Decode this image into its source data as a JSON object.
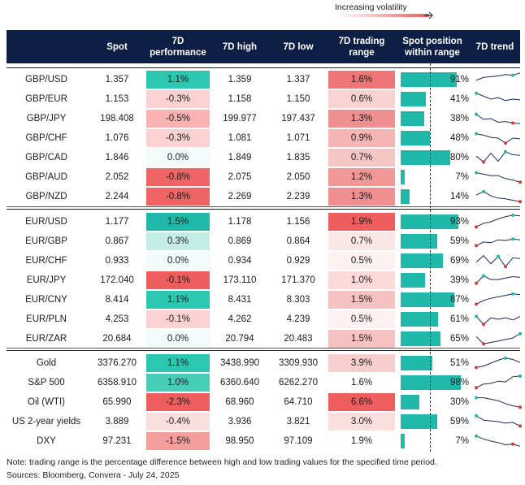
{
  "legend": {
    "label": "Increasing volatility"
  },
  "headers": {
    "spot": "Spot",
    "perf": "7D performance",
    "high": "7D high",
    "low": "7D low",
    "range": "7D trading range",
    "position": "Spot position within range",
    "trend": "7D trend"
  },
  "groups": [
    [
      {
        "name": "GBP/USD",
        "spot": "1.357",
        "perf": "1.1%",
        "perf_color": "#2cc7b0",
        "high": "1.359",
        "low": "1.337",
        "range": "1.6%",
        "range_color": "#ef7676",
        "pos": "91%",
        "pos_value": 91,
        "trend": [
          0.55,
          0.35,
          0.3,
          0.25,
          0.15,
          0.2,
          0.05
        ],
        "trend_hi": 5,
        "trend_lo": -1
      },
      {
        "name": "GBP/EUR",
        "spot": "1.153",
        "perf": "-0.3%",
        "perf_color": "#fbd1d1",
        "high": "1.158",
        "low": "1.150",
        "range": "0.6%",
        "range_color": "#f8d3d2",
        "pos": "41%",
        "pos_value": 41,
        "trend": [
          0.1,
          0.3,
          0.5,
          0.4,
          0.6,
          0.5,
          0.55
        ],
        "trend_hi": 0,
        "trend_lo": -1
      },
      {
        "name": "GBP/JPY",
        "spot": "198.408",
        "perf": "-0.5%",
        "perf_color": "#f9b1b1",
        "high": "199.977",
        "low": "197.437",
        "range": "1.3%",
        "range_color": "#f08f8f",
        "pos": "38%",
        "pos_value": 38,
        "trend": [
          0.2,
          0.55,
          0.5,
          0.75,
          0.7,
          0.8,
          0.85
        ],
        "trend_hi": 0,
        "trend_lo": 5
      },
      {
        "name": "GBP/CHF",
        "spot": "1.076",
        "perf": "-0.3%",
        "perf_color": "#fbd1d1",
        "high": "1.081",
        "low": "1.071",
        "range": "0.9%",
        "range_color": "#f4b5b4",
        "pos": "48%",
        "pos_value": 48,
        "trend": [
          0.2,
          0.3,
          0.45,
          0.5,
          0.85,
          0.5,
          0.55
        ],
        "trend_hi": 0,
        "trend_lo": 4
      },
      {
        "name": "GBP/CAD",
        "spot": "1.846",
        "perf": "0.0%",
        "perf_color": "#f3fbfa",
        "high": "1.849",
        "low": "1.835",
        "range": "0.7%",
        "range_color": "#f6c6c5",
        "pos": "80%",
        "pos_value": 80,
        "trend": [
          0.4,
          0.8,
          0.2,
          0.75,
          0.1,
          0.3,
          0.35
        ],
        "trend_hi": 4,
        "trend_lo": 1
      },
      {
        "name": "GBP/AUD",
        "spot": "2.052",
        "perf": "-0.8%",
        "perf_color": "#ef6465",
        "high": "2.075",
        "low": "2.050",
        "range": "1.2%",
        "range_color": "#f19897",
        "pos": "7%",
        "pos_value": 7,
        "trend": [
          0.2,
          0.3,
          0.4,
          0.4,
          0.6,
          0.7,
          0.85
        ],
        "trend_hi": 0,
        "trend_lo": 6
      },
      {
        "name": "GBP/NZD",
        "spot": "2.244",
        "perf": "-0.8%",
        "perf_color": "#ef6465",
        "high": "2.269",
        "low": "2.239",
        "range": "1.3%",
        "range_color": "#f08f8f",
        "pos": "14%",
        "pos_value": 14,
        "trend": [
          0.4,
          0.15,
          0.45,
          0.6,
          0.65,
          0.75,
          0.85
        ],
        "trend_hi": 1,
        "trend_lo": 6
      }
    ],
    [
      {
        "name": "EUR/USD",
        "spot": "1.177",
        "perf": "1.5%",
        "perf_color": "#1fb8a9",
        "high": "1.178",
        "low": "1.156",
        "range": "1.9%",
        "range_color": "#ee5e5e",
        "pos": "93%",
        "pos_value": 93,
        "trend": [
          0.85,
          0.6,
          0.5,
          0.3,
          0.15,
          0.05,
          0.1
        ],
        "trend_hi": 5,
        "trend_lo": 0
      },
      {
        "name": "EUR/GBP",
        "spot": "0.867",
        "perf": "0.3%",
        "perf_color": "#c3ede6",
        "high": "0.869",
        "low": "0.864",
        "range": "0.7%",
        "range_color": "#fbe6e6",
        "pos": "59%",
        "pos_value": 59,
        "trend": [
          0.8,
          0.55,
          0.6,
          0.4,
          0.45,
          0.35,
          0.4
        ],
        "trend_hi": 5,
        "trend_lo": 0
      },
      {
        "name": "EUR/CHF",
        "spot": "0.933",
        "perf": "0.0%",
        "perf_color": "#f3fbfa",
        "high": "0.934",
        "low": "0.929",
        "range": "0.5%",
        "range_color": "#fdf1f1",
        "pos": "69%",
        "pos_value": 69,
        "trend": [
          0.6,
          0.15,
          0.7,
          0.2,
          0.9,
          0.3,
          0.35
        ],
        "trend_hi": 3,
        "trend_lo": 4
      },
      {
        "name": "EUR/JPY",
        "spot": "172.040",
        "perf": "-0.1%",
        "perf_color": "#ee5e5e",
        "high": "173.110",
        "low": "171.370",
        "range": "1.0%",
        "range_color": "#fbd9d9",
        "pos": "39%",
        "pos_value": 39,
        "trend": [
          0.7,
          0.2,
          0.45,
          0.45,
          0.35,
          0.25,
          0.3
        ],
        "trend_hi": 1,
        "trend_lo": 0
      },
      {
        "name": "EUR/CNY",
        "spot": "8.414",
        "perf": "1.1%",
        "perf_color": "#2cc7b0",
        "high": "8.431",
        "low": "8.303",
        "range": "1.5%",
        "range_color": "#f6c1c1",
        "pos": "87%",
        "pos_value": 87,
        "trend": [
          0.8,
          0.55,
          0.4,
          0.3,
          0.2,
          0.1,
          0.15
        ],
        "trend_hi": 5,
        "trend_lo": 0
      },
      {
        "name": "EUR/PLN",
        "spot": "4.253",
        "perf": "-0.1%",
        "perf_color": "#fbd1d1",
        "high": "4.262",
        "low": "4.239",
        "range": "0.5%",
        "range_color": "#fdf1f1",
        "pos": "61%",
        "pos_value": 61,
        "trend": [
          0.3,
          0.85,
          0.4,
          0.5,
          0.4,
          0.55,
          0.3
        ],
        "trend_hi": 0,
        "trend_lo": 1
      },
      {
        "name": "EUR/ZAR",
        "spot": "20.684",
        "perf": "0.0%",
        "perf_color": "#f3fbfa",
        "high": "20.794",
        "low": "20.483",
        "range": "1.5%",
        "range_color": "#f6c1c1",
        "pos": "65%",
        "pos_value": 65,
        "trend": [
          0.35,
          0.85,
          0.75,
          0.65,
          0.55,
          0.45,
          0.15
        ],
        "trend_hi": 6,
        "trend_lo": 1
      }
    ],
    [
      {
        "name": "Gold",
        "spot": "3376.270",
        "perf": "1.1%",
        "perf_color": "#2cc7b0",
        "high": "3438.990",
        "low": "3309.930",
        "range": "3.9%",
        "range_color": "#f8cfcf",
        "pos": "51%",
        "pos_value": 51,
        "trend": [
          0.8,
          0.7,
          0.5,
          0.3,
          0.15,
          0.25,
          0.45
        ],
        "trend_hi": 4,
        "trend_lo": 0
      },
      {
        "name": "S&P 500",
        "spot": "6358.910",
        "perf": "1.0%",
        "perf_color": "#48cdb9",
        "high": "6360.640",
        "low": "6262.270",
        "range": "1.6%",
        "range_color": "#ffffff",
        "pos": "98%",
        "pos_value": 98,
        "trend": [
          0.85,
          0.6,
          0.55,
          0.4,
          0.45,
          0.1,
          0.05
        ],
        "trend_hi": 6,
        "trend_lo": 0
      },
      {
        "name": "Oil (WTI)",
        "spot": "65.990",
        "perf": "-2.3%",
        "perf_color": "#ee5e5e",
        "high": "68.960",
        "low": "64.710",
        "range": "6.6%",
        "range_color": "#ee5e5e",
        "pos": "30%",
        "pos_value": 30,
        "trend": [
          0.2,
          0.2,
          0.3,
          0.4,
          0.6,
          0.75,
          0.85
        ],
        "trend_hi": 0,
        "trend_lo": 6
      },
      {
        "name": "US 2-year yields",
        "spot": "3.889",
        "perf": "-0.4%",
        "perf_color": "#fbdede",
        "high": "3.936",
        "low": "3.821",
        "range": "3.0%",
        "range_color": "#fbdede",
        "pos": "59%",
        "pos_value": 59,
        "trend": [
          0.1,
          0.4,
          0.45,
          0.5,
          0.6,
          0.55,
          0.8
        ],
        "trend_hi": 0,
        "trend_lo": 6
      },
      {
        "name": "DXY",
        "spot": "97.231",
        "perf": "-1.5%",
        "perf_color": "#f59e9e",
        "high": "98.950",
        "low": "97.109",
        "range": "1.9%",
        "range_color": "#ffffff",
        "pos": "7%",
        "pos_value": 7,
        "trend": [
          0.15,
          0.35,
          0.5,
          0.6,
          0.75,
          0.7,
          0.85
        ],
        "trend_hi": 0,
        "trend_lo": 5
      }
    ]
  ],
  "footer": {
    "note": "Note: trading range is the percentage difference between high and low trading values for the specified time period.",
    "sources": "Sources: Bloomberg, Convera - July 24, 2025"
  },
  "colors": {
    "header_bg": "#0d1f44",
    "bar": "#1fb8a9",
    "trend_line": "#1b2a55",
    "hi_dot": "#1fb8a9",
    "lo_dot": "#d9393a"
  }
}
